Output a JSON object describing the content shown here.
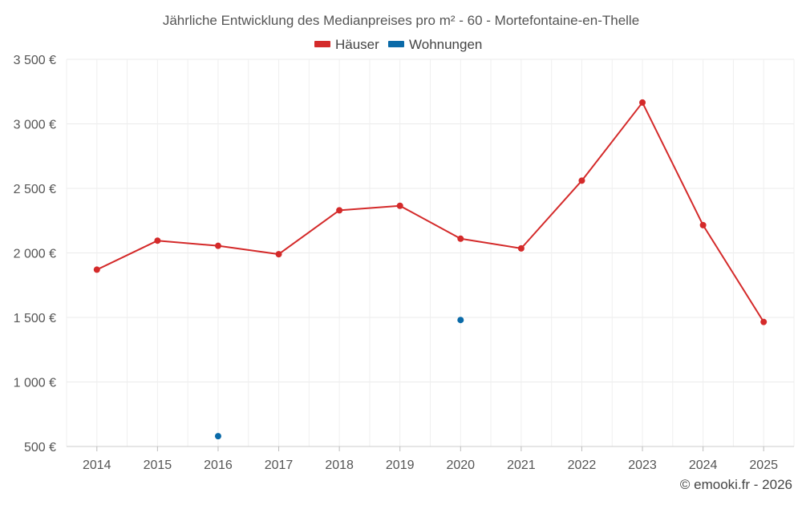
{
  "chart_data": {
    "type": "line",
    "title": "Jährliche Entwicklung des Medianpreises pro m² - 60 - Mortefontaine-en-Thelle",
    "xlabel": "",
    "ylabel": "",
    "categories": [
      "2014",
      "2015",
      "2016",
      "2017",
      "2018",
      "2019",
      "2020",
      "2021",
      "2022",
      "2023",
      "2024",
      "2025"
    ],
    "ylim": [
      500,
      3500
    ],
    "yticks": [
      500,
      1000,
      1500,
      2000,
      2500,
      3000,
      3500
    ],
    "ytick_labels": [
      "500 €",
      "1 000 €",
      "1 500 €",
      "2 000 €",
      "2 500 €",
      "3 000 €",
      "3 500 €"
    ],
    "grid": true,
    "legend_position": "top-center",
    "series": [
      {
        "name": "Häuser",
        "color": "#d42a2a",
        "values": [
          1870,
          2095,
          2055,
          1990,
          2330,
          2365,
          2110,
          2035,
          2560,
          3165,
          2215,
          1465
        ]
      },
      {
        "name": "Wohnungen",
        "color": "#0a6aa8",
        "values": [
          null,
          null,
          580,
          null,
          null,
          null,
          1480,
          null,
          null,
          null,
          null,
          null
        ]
      }
    ]
  },
  "footer": {
    "copyright": "© emooki.fr - 2026"
  }
}
